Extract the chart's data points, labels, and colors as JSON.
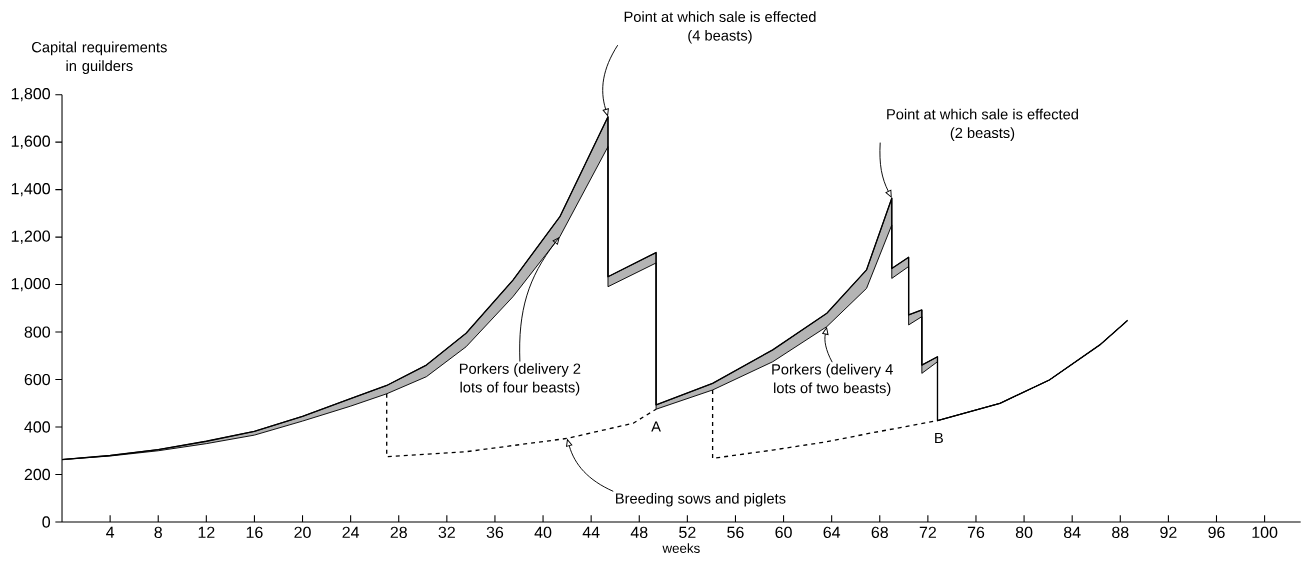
{
  "chart_data": {
    "type": "line",
    "xlabel": "weeks",
    "ylabel": "Capital requirements in guilders",
    "xlim": [
      0,
      103
    ],
    "ylim": [
      0,
      1800
    ],
    "xticks": [
      4,
      8,
      12,
      16,
      20,
      24,
      28,
      32,
      36,
      40,
      44,
      48,
      52,
      56,
      60,
      64,
      68,
      72,
      76,
      80,
      84,
      88,
      92,
      96,
      100
    ],
    "yticks": [
      0,
      200,
      400,
      600,
      800,
      {
        "value": 1000,
        "label": "1,000"
      },
      {
        "value": 1200,
        "label": "1,200"
      },
      {
        "value": 1400,
        "label": "1,400"
      },
      {
        "value": 1600,
        "label": "1,600"
      },
      {
        "value": 1800,
        "label": "1,800"
      }
    ],
    "marker": "none",
    "series": [
      {
        "color": "#000000",
        "line_style": "solid",
        "x": [
          0,
          4,
          8,
          12,
          16,
          20,
          24,
          27,
          30.3,
          33.6,
          37.5,
          41.4,
          45.4,
          45.4,
          49.4,
          49.4,
          54.1,
          59.1,
          63.6,
          66.9,
          69,
          69,
          70.4,
          70.4,
          71.5,
          71.5,
          72.8,
          72.8,
          78,
          82.1,
          86.3,
          88.6
        ],
        "values": [
          263,
          280,
          305,
          340,
          382,
          445,
          520,
          575,
          661,
          795,
          1019,
          1286,
          1707,
          1033,
          1135,
          493,
          584,
          725,
          879,
          1062,
          1364,
          1068,
          1115,
          872,
          893,
          661,
          696,
          427,
          500,
          598,
          746,
          849
        ],
        "upper": [
          263,
          280,
          305,
          340,
          382,
          445,
          520,
          575,
          661,
          795,
          1019,
          1286,
          1707,
          1033,
          1135,
          493,
          584,
          725,
          879,
          1062,
          1364,
          1068,
          1115,
          872,
          893,
          661,
          696,
          427,
          500,
          598,
          746,
          849
        ],
        "lower": [
          263,
          278,
          300,
          330,
          366,
          425,
          488,
          540,
          612,
          738,
          949,
          1202,
          1581,
          991,
          1091,
          475,
          556,
          675,
          823,
          984,
          1251,
          1026,
          1076,
          830,
          865,
          626,
          675,
          427,
          500,
          598,
          746,
          849
        ]
      },
      {
        "color": "#000000",
        "line_style": "dashed",
        "x": [
          27,
          27,
          33.6,
          42,
          47.5,
          49.4,
          51.7,
          54.1,
          54.1,
          59.1,
          63.6,
          67.2,
          72.8
        ],
        "values": [
          540,
          275,
          296,
          352,
          416,
          475,
          null,
          556,
          268,
          303,
          338,
          374,
          427
        ]
      }
    ],
    "annotations": [
      {
        "text": "Point at which sale is effected (4 beasts)",
        "x": 45.4,
        "y": 1707
      },
      {
        "text": "Point at which sale is effected (2 beasts)",
        "x": 69,
        "y": 1364
      },
      {
        "text": "Porkers (delivery 2 lots of four beasts)",
        "x": 41.4,
        "y": 1202
      },
      {
        "text": "Porkers (delivery 4 lots of two beasts)",
        "x": 63.6,
        "y": 823
      },
      {
        "text": "Breeding sows and piglets",
        "x": 42,
        "y": 352
      },
      {
        "text": "A",
        "x": 49.4,
        "y": 475
      },
      {
        "text": "B",
        "x": 72.8,
        "y": 427
      }
    ]
  }
}
